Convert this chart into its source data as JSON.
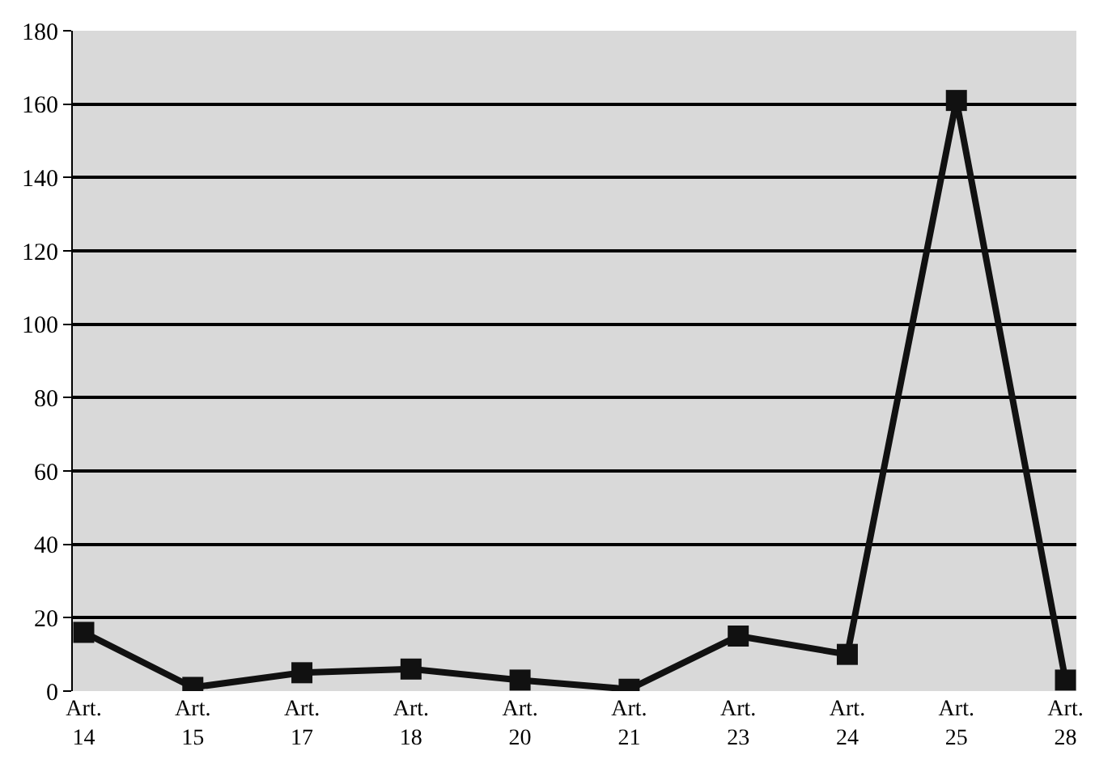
{
  "chart_data": {
    "type": "line",
    "categories": [
      "Art. 14",
      "Art. 15",
      "Art. 17",
      "Art. 18",
      "Art. 20",
      "Art. 21",
      "Art. 23",
      "Art. 24",
      "Art. 25",
      "Art. 28"
    ],
    "values": [
      16,
      1,
      5,
      6,
      3,
      0.5,
      15,
      10,
      161,
      3
    ],
    "color": "#111111",
    "marker": "square",
    "line_style": "solid",
    "ylim": [
      0,
      180
    ],
    "yticks": [
      0,
      20,
      40,
      60,
      80,
      100,
      120,
      140,
      160,
      180
    ],
    "grid": "y",
    "legend": false
  }
}
